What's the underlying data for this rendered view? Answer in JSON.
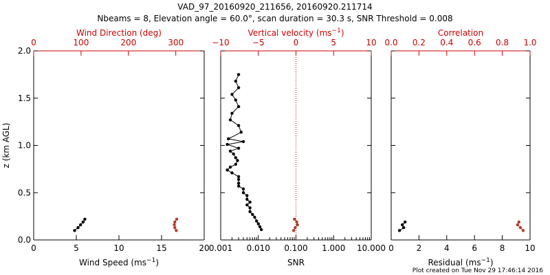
{
  "title_line1": "VAD_97_20160920_211656, 20160920.211714",
  "title_line2": "Nbeams = 8, Elevation angle = 60.0°, scan duration = 30.3 s, SNR Threshold = 0.008",
  "footer": "Plot created on Tue Nov 29 17:46:14 2016",
  "colors": {
    "primary": "#000000",
    "secondary": "#cc0000",
    "secondary_series": "#b23a2a"
  },
  "chart_data": [
    {
      "type": "scatter",
      "ylabel": "z (km AGL)",
      "ylim": [
        0,
        2.0
      ],
      "yticks": [
        0.0,
        0.5,
        1.0,
        1.5,
        2.0
      ],
      "yticklabels": [
        "0.0",
        "0.5",
        "1.0",
        "1.5",
        "2.0"
      ],
      "bottom_axis": {
        "label": "Wind Speed (ms",
        "label_exp": "−1",
        "label_end": ")",
        "lim": [
          0,
          20
        ],
        "ticks": [
          0,
          5,
          10,
          15,
          20
        ],
        "ticklabels": [
          "0",
          "5",
          "10",
          "15",
          "20"
        ]
      },
      "top_axis": {
        "label": "Wind Direction (deg)",
        "lim": [
          0,
          360
        ],
        "ticks": [
          0,
          100,
          200,
          300
        ],
        "ticklabels": [
          "0",
          "100",
          "200",
          "300"
        ]
      },
      "series": [
        {
          "axis": "bottom",
          "x": [
            4.8,
            5.2,
            5.5,
            5.8,
            6.0
          ],
          "y": [
            0.1,
            0.13,
            0.16,
            0.19,
            0.22
          ]
        },
        {
          "axis": "top",
          "x": [
            301,
            298,
            297,
            298,
            302
          ],
          "y": [
            0.1,
            0.13,
            0.16,
            0.19,
            0.22
          ]
        }
      ]
    },
    {
      "type": "scatter",
      "ylim": [
        0,
        2.0
      ],
      "yticks": [
        0.0,
        0.5,
        1.0,
        1.5,
        2.0
      ],
      "bottom_axis": {
        "label": "SNR",
        "scale": "log",
        "lim": [
          0.001,
          10
        ],
        "ticks": [
          0.001,
          0.01,
          0.1,
          1,
          10
        ],
        "ticklabels": [
          "0.001",
          "0.010",
          "0.100",
          "1.000",
          "10.000"
        ]
      },
      "top_axis": {
        "label": "Vertical velocity (ms",
        "label_exp": "−1",
        "label_end": ")",
        "lim": [
          -10,
          10
        ],
        "ticks": [
          -10,
          -5,
          0,
          5,
          10
        ],
        "ticklabels": [
          "−10",
          "−5",
          "0",
          "5",
          "10"
        ],
        "zero_line": true
      },
      "series": [
        {
          "axis": "bottom",
          "x": [
            0.012,
            0.011,
            0.01,
            0.009,
            0.008,
            0.007,
            0.006,
            0.006,
            0.005,
            0.006,
            0.005,
            0.005,
            0.004,
            0.004,
            0.003,
            0.003,
            0.003,
            0.003,
            0.002,
            0.0015,
            0.0018,
            0.0025,
            0.0028,
            0.0025,
            0.0022,
            0.0018,
            0.003,
            0.0015,
            0.004,
            0.0016,
            0.0035,
            0.003,
            0.0018,
            0.002,
            0.003,
            0.0025,
            0.002,
            0.003,
            0.0025,
            0.003
          ],
          "y": [
            0.11,
            0.14,
            0.17,
            0.2,
            0.24,
            0.27,
            0.3,
            0.34,
            0.37,
            0.4,
            0.43,
            0.47,
            0.5,
            0.54,
            0.57,
            0.6,
            0.64,
            0.67,
            0.71,
            0.74,
            0.77,
            0.8,
            0.84,
            0.87,
            0.91,
            0.94,
            0.97,
            1.01,
            1.04,
            1.07,
            1.14,
            1.21,
            1.27,
            1.34,
            1.41,
            1.48,
            1.54,
            1.61,
            1.68,
            1.75
          ]
        },
        {
          "axis": "top",
          "x": [
            -0.3,
            -0.1,
            0.2,
            0.1,
            -0.2
          ],
          "y": [
            0.1,
            0.13,
            0.16,
            0.19,
            0.22
          ]
        }
      ]
    },
    {
      "type": "scatter",
      "ylim": [
        0,
        2.0
      ],
      "yticks": [
        0.0,
        0.5,
        1.0,
        1.5,
        2.0
      ],
      "bottom_axis": {
        "label": "Residual (ms",
        "label_exp": "−1",
        "label_end": ")",
        "lim": [
          0,
          10
        ],
        "ticks": [
          0,
          2,
          4,
          6,
          8,
          10
        ],
        "ticklabels": [
          "0",
          "2",
          "4",
          "6",
          "8",
          "10"
        ]
      },
      "top_axis": {
        "label": "Correlation",
        "lim": [
          0,
          1.0
        ],
        "ticks": [
          0.0,
          0.2,
          0.4,
          0.6,
          0.8,
          1.0
        ],
        "ticklabels": [
          "0.0",
          "0.2",
          "0.4",
          "0.6",
          "0.8",
          "1.0"
        ]
      },
      "series": [
        {
          "axis": "bottom",
          "x": [
            0.6,
            0.9,
            0.8,
            1.0
          ],
          "y": [
            0.1,
            0.13,
            0.16,
            0.19
          ]
        },
        {
          "axis": "top",
          "x": [
            0.95,
            0.93,
            0.91,
            0.92
          ],
          "y": [
            0.1,
            0.13,
            0.16,
            0.19
          ]
        }
      ]
    }
  ]
}
